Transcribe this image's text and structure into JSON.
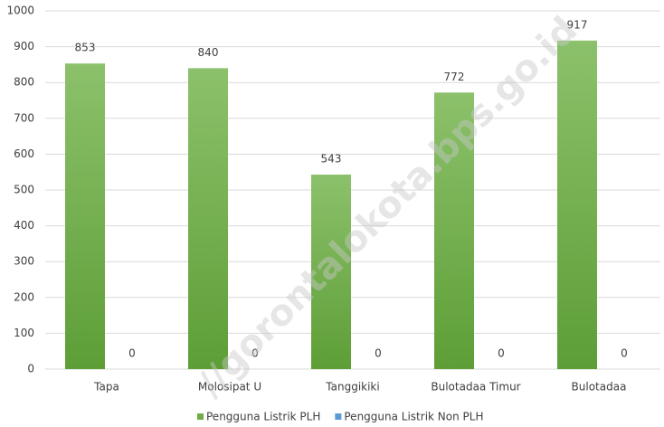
{
  "chart_data": {
    "type": "bar",
    "categories": [
      "Tapa",
      "Molosipat U",
      "Tanggikiki",
      "Bulotadaa Timur",
      "Bulotadaa"
    ],
    "series": [
      {
        "name": "Pengguna Listrik PLH",
        "color": "#70ad47",
        "values": [
          853,
          840,
          543,
          772,
          917
        ]
      },
      {
        "name": "Pengguna Listrik Non PLH",
        "color": "#5b9bd5",
        "values": [
          0,
          0,
          0,
          0,
          0
        ]
      }
    ],
    "ylim": [
      0,
      1000
    ],
    "yticks": [
      0,
      100,
      200,
      300,
      400,
      500,
      600,
      700,
      800,
      900,
      1000
    ],
    "grid": true,
    "legend": "bottom",
    "watermark": "//gorontalokota.bps.go.id"
  }
}
